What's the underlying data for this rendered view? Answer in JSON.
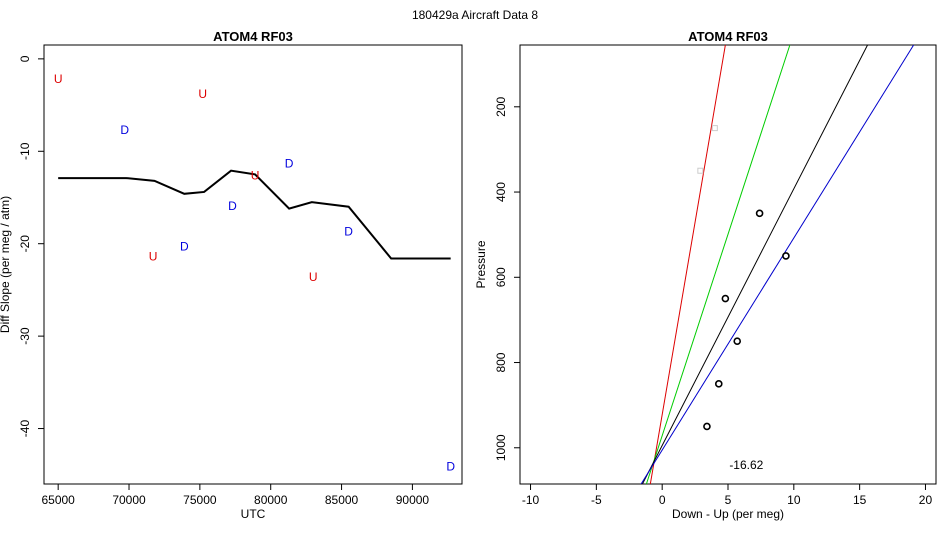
{
  "page_title": "180429a   Aircraft Data 8",
  "chart_data": [
    {
      "type": "scatter",
      "title": "ATOM4 RF03",
      "xlabel": "UTC",
      "ylabel": "Diff Slope (per meg / atm)",
      "xlim": [
        64000,
        93500
      ],
      "ylim": [
        -46,
        1.5
      ],
      "xticks": [
        65000,
        70000,
        75000,
        80000,
        85000,
        90000
      ],
      "yticks": [
        0,
        -10,
        -20,
        -30,
        -40
      ],
      "grid": false,
      "line": {
        "name": "running mean",
        "color": "#000000",
        "x": [
          65000,
          69800,
          71800,
          73900,
          75300,
          77200,
          78900,
          81300,
          82900,
          85500,
          88500,
          92700
        ],
        "y": [
          -12.9,
          -12.9,
          -13.2,
          -14.6,
          -14.4,
          -12.1,
          -12.5,
          -16.2,
          -15.5,
          -16.0,
          -21.6,
          -21.6
        ]
      },
      "series": [
        {
          "name": "U",
          "color": "#dd0000",
          "points": [
            {
              "x": 65000,
              "y": -2.2
            },
            {
              "x": 75200,
              "y": -3.8
            },
            {
              "x": 78900,
              "y": -12.6
            },
            {
              "x": 71700,
              "y": -21.4
            },
            {
              "x": 83000,
              "y": -23.6
            }
          ]
        },
        {
          "name": "D",
          "color": "#0000dd",
          "points": [
            {
              "x": 69700,
              "y": -7.7
            },
            {
              "x": 81300,
              "y": -11.3
            },
            {
              "x": 77300,
              "y": -15.9
            },
            {
              "x": 73900,
              "y": -20.3
            },
            {
              "x": 85500,
              "y": -18.7
            },
            {
              "x": 92700,
              "y": -44.1
            }
          ]
        }
      ]
    },
    {
      "type": "scatter",
      "title": "ATOM4 RF03",
      "xlabel": "Down - Up (per meg)",
      "ylabel": "Pressure",
      "xlim": [
        -10.8,
        20.8
      ],
      "ylim": [
        1085,
        55
      ],
      "xticks": [
        -10,
        -5,
        0,
        5,
        10,
        15,
        20
      ],
      "yticks": [
        200,
        400,
        600,
        800,
        1000
      ],
      "grid": false,
      "annotation": "-16.62",
      "annotation_pos": {
        "x": 5.1,
        "y": 1040
      },
      "points": [
        {
          "x": 7.4,
          "y": 450,
          "color": "#000000",
          "marker": "circle"
        },
        {
          "x": 9.4,
          "y": 550,
          "color": "#000000",
          "marker": "circle"
        },
        {
          "x": 4.8,
          "y": 650,
          "color": "#000000",
          "marker": "circle"
        },
        {
          "x": 5.7,
          "y": 750,
          "color": "#000000",
          "marker": "circle"
        },
        {
          "x": 4.3,
          "y": 850,
          "color": "#000000",
          "marker": "circle"
        },
        {
          "x": 3.4,
          "y": 950,
          "color": "#000000",
          "marker": "circle"
        },
        {
          "x": 4.0,
          "y": 250,
          "color": "#cccccc",
          "marker": "square"
        },
        {
          "x": 2.9,
          "y": 350,
          "color": "#cccccc",
          "marker": "square"
        }
      ],
      "fit_lines": [
        {
          "name": "red fit",
          "color": "#dd0000",
          "x1": -0.9,
          "y1": 1085,
          "x2": 4.8,
          "y2": 55
        },
        {
          "name": "green fit",
          "color": "#00cc00",
          "x1": -1.2,
          "y1": 1085,
          "x2": 9.7,
          "y2": 55
        },
        {
          "name": "black fit",
          "color": "#000000",
          "x1": -1.5,
          "y1": 1085,
          "x2": 15.6,
          "y2": 55
        },
        {
          "name": "blue fit",
          "color": "#0000cc",
          "x1": -1.6,
          "y1": 1085,
          "x2": 19.1,
          "y2": 55
        }
      ]
    }
  ]
}
